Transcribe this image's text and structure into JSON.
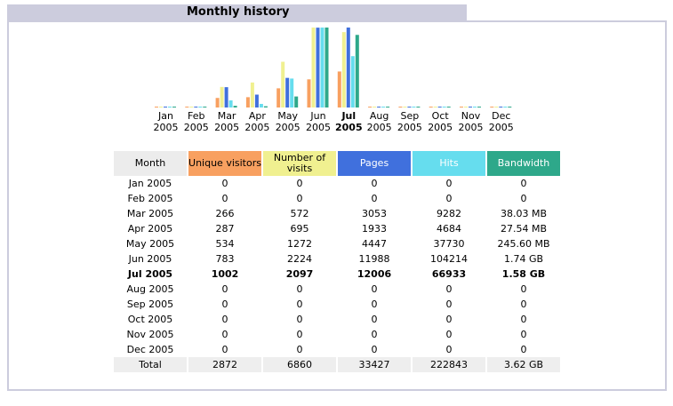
{
  "section_title": "Monthly history",
  "colors": {
    "unique_visitors": "#f8a060",
    "number_of_visits": "#f0f090",
    "pages": "#4070dd",
    "hits": "#66ddee",
    "bandwidth": "#2ea88a",
    "month_header": "#ececec",
    "frame": "#ccccdd"
  },
  "columns": {
    "month": "Month",
    "unique_visitors": "Unique visitors",
    "number_of_visits": "Number of visits",
    "pages": "Pages",
    "hits": "Hits",
    "bandwidth": "Bandwidth"
  },
  "current_month": "Jul 2005",
  "rows": [
    {
      "month": "Jan 2005",
      "unique": "0",
      "visits": "0",
      "pages": "0",
      "hits": "0",
      "bandwidth": "0"
    },
    {
      "month": "Feb 2005",
      "unique": "0",
      "visits": "0",
      "pages": "0",
      "hits": "0",
      "bandwidth": "0"
    },
    {
      "month": "Mar 2005",
      "unique": "266",
      "visits": "572",
      "pages": "3053",
      "hits": "9282",
      "bandwidth": "38.03 MB"
    },
    {
      "month": "Apr 2005",
      "unique": "287",
      "visits": "695",
      "pages": "1933",
      "hits": "4684",
      "bandwidth": "27.54 MB"
    },
    {
      "month": "May 2005",
      "unique": "534",
      "visits": "1272",
      "pages": "4447",
      "hits": "37730",
      "bandwidth": "245.60 MB"
    },
    {
      "month": "Jun 2005",
      "unique": "783",
      "visits": "2224",
      "pages": "11988",
      "hits": "104214",
      "bandwidth": "1.74 GB"
    },
    {
      "month": "Jul 2005",
      "unique": "1002",
      "visits": "2097",
      "pages": "12006",
      "hits": "66933",
      "bandwidth": "1.58 GB"
    },
    {
      "month": "Aug 2005",
      "unique": "0",
      "visits": "0",
      "pages": "0",
      "hits": "0",
      "bandwidth": "0"
    },
    {
      "month": "Sep 2005",
      "unique": "0",
      "visits": "0",
      "pages": "0",
      "hits": "0",
      "bandwidth": "0"
    },
    {
      "month": "Oct 2005",
      "unique": "0",
      "visits": "0",
      "pages": "0",
      "hits": "0",
      "bandwidth": "0"
    },
    {
      "month": "Nov 2005",
      "unique": "0",
      "visits": "0",
      "pages": "0",
      "hits": "0",
      "bandwidth": "0"
    },
    {
      "month": "Dec 2005",
      "unique": "0",
      "visits": "0",
      "pages": "0",
      "hits": "0",
      "bandwidth": "0"
    }
  ],
  "total": {
    "label": "Total",
    "unique": "2872",
    "visits": "6860",
    "pages": "33427",
    "hits": "222843",
    "bandwidth": "3.62 GB"
  },
  "chart_data": {
    "type": "bar",
    "categories": [
      [
        "Jan",
        "2005"
      ],
      [
        "Feb",
        "2005"
      ],
      [
        "Mar",
        "2005"
      ],
      [
        "Apr",
        "2005"
      ],
      [
        "May",
        "2005"
      ],
      [
        "Jun",
        "2005"
      ],
      [
        "Jul",
        "2005"
      ],
      [
        "Aug",
        "2005"
      ],
      [
        "Sep",
        "2005"
      ],
      [
        "Oct",
        "2005"
      ],
      [
        "Nov",
        "2005"
      ],
      [
        "Dec",
        "2005"
      ]
    ],
    "highlight_index": 6,
    "series": [
      {
        "key": "unique_visitors",
        "values": [
          0,
          0,
          266,
          287,
          534,
          783,
          1002,
          0,
          0,
          0,
          0,
          0
        ]
      },
      {
        "key": "number_of_visits",
        "values": [
          0,
          0,
          572,
          695,
          1272,
          2224,
          2097,
          0,
          0,
          0,
          0,
          0
        ]
      },
      {
        "key": "pages",
        "values": [
          0,
          0,
          3053,
          1933,
          4447,
          11988,
          12006,
          0,
          0,
          0,
          0,
          0
        ]
      },
      {
        "key": "hits",
        "values": [
          0,
          0,
          9282,
          4684,
          37730,
          104214,
          66933,
          0,
          0,
          0,
          0,
          0
        ]
      },
      {
        "key": "bandwidth",
        "values": [
          0,
          0,
          38.03,
          27.54,
          245.6,
          1781.76,
          1617.92,
          0,
          0,
          0,
          0,
          0
        ]
      }
    ]
  }
}
